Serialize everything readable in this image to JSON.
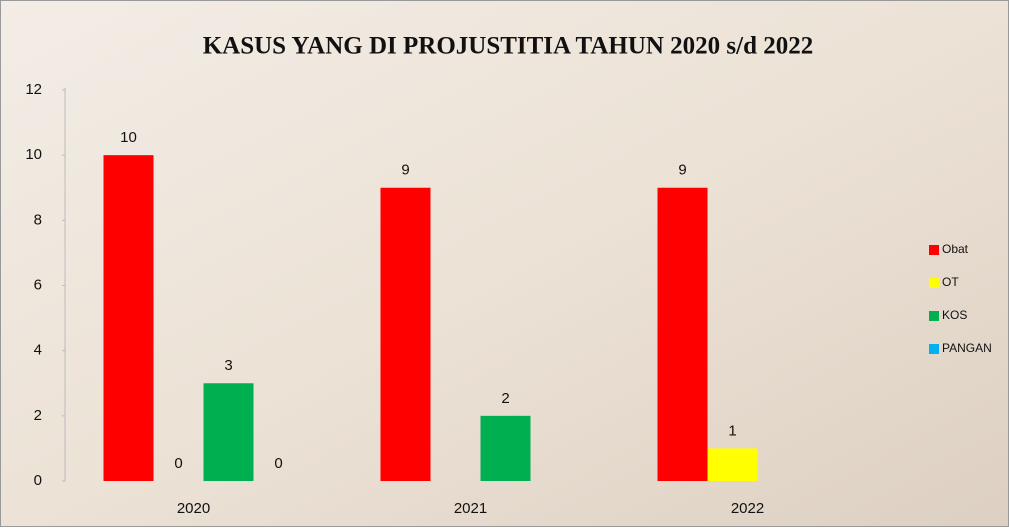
{
  "chart_data": {
    "type": "bar",
    "title": "KASUS YANG DI PROJUSTITIA TAHUN 2020 s/d   2022",
    "categories": [
      "2020",
      "2021",
      "2022"
    ],
    "series": [
      {
        "name": "Obat",
        "color": "#ff0000",
        "values": [
          10,
          9,
          9
        ]
      },
      {
        "name": "OT",
        "color": "#ffff00",
        "values": [
          0,
          null,
          1
        ]
      },
      {
        "name": "KOS",
        "color": "#00b050",
        "values": [
          3,
          2,
          null
        ]
      },
      {
        "name": "PANGAN",
        "color": "#00b0f0",
        "values": [
          0,
          null,
          null
        ]
      }
    ],
    "ylim": [
      0,
      12
    ],
    "yticks": [
      0,
      2,
      4,
      6,
      8,
      10,
      12
    ],
    "grid": false,
    "legend": "right"
  }
}
